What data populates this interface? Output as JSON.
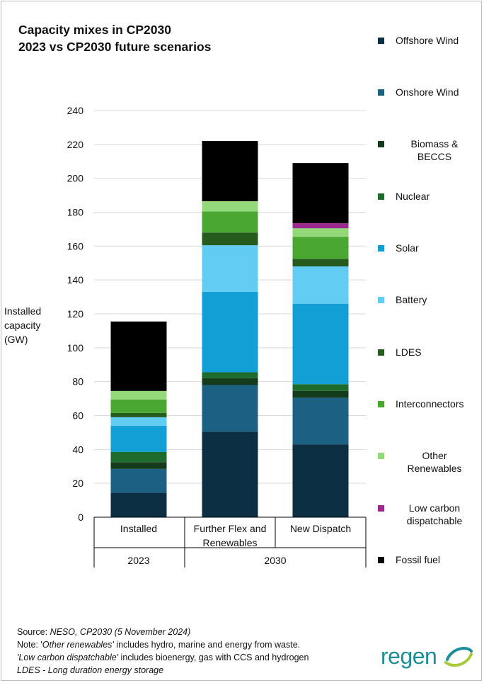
{
  "chart_data": {
    "type": "bar",
    "stacked": true,
    "title_line1": "Capacity mixes in CP2030",
    "title_line2": "2023 vs CP2030 future scenarios",
    "ylabel": "Installed capacity (GW)",
    "ylim": [
      0,
      240
    ],
    "yticks": [
      0,
      20,
      40,
      60,
      80,
      100,
      120,
      140,
      160,
      180,
      200,
      220,
      240
    ],
    "grid": true,
    "legend_position": "right",
    "categories": [
      "Installed",
      "Further Flex and Renewables",
      "New Dispatch"
    ],
    "category_lines": [
      [
        "Installed"
      ],
      [
        "Further Flex and",
        "Renewables"
      ],
      [
        "New Dispatch"
      ]
    ],
    "groups": [
      {
        "label": "2023",
        "categories": [
          "Installed"
        ]
      },
      {
        "label": "2030",
        "categories": [
          "Further Flex and Renewables",
          "New Dispatch"
        ]
      }
    ],
    "series": [
      {
        "name": "Offshore Wind",
        "color": "#0c2f44",
        "values": [
          14.5,
          50.5,
          43
        ]
      },
      {
        "name": "Onshore Wind",
        "color": "#1c6184",
        "values": [
          14,
          27.5,
          27.5
        ]
      },
      {
        "name": "Biomass & BECCS",
        "color": "#143b1c",
        "values": [
          4,
          4,
          4
        ]
      },
      {
        "name": "Nuclear",
        "color": "#1e6b2e",
        "values": [
          6,
          3.5,
          4
        ]
      },
      {
        "name": "Solar",
        "color": "#129fd6",
        "values": [
          15.5,
          47.5,
          47.5
        ]
      },
      {
        "name": "Battery",
        "color": "#63ccf2",
        "values": [
          5,
          27.5,
          22
        ]
      },
      {
        "name": "LDES",
        "color": "#255c1e",
        "values": [
          2.5,
          7.5,
          4.5
        ]
      },
      {
        "name": "Interconnectors",
        "color": "#4aa832",
        "values": [
          8,
          12.5,
          13
        ]
      },
      {
        "name": "Other Renewables",
        "color": "#93d97a",
        "values": [
          5,
          6,
          5
        ]
      },
      {
        "name": "Low carbon dispatchable",
        "color": "#9b2a8e",
        "values": [
          0,
          0,
          3
        ]
      },
      {
        "name": "Fossil fuel",
        "color": "#000000",
        "values": [
          41,
          35.5,
          35.5
        ]
      }
    ]
  },
  "legend": {
    "items": [
      {
        "lines": [
          "Offshore Wind"
        ],
        "color": "#0c2f44"
      },
      {
        "lines": [
          "Onshore Wind"
        ],
        "color": "#1c6184"
      },
      {
        "lines": [
          "Biomass &",
          "BECCS"
        ],
        "color": "#143b1c"
      },
      {
        "lines": [
          "Nuclear"
        ],
        "color": "#1e6b2e"
      },
      {
        "lines": [
          "Solar"
        ],
        "color": "#129fd6"
      },
      {
        "lines": [
          "Battery"
        ],
        "color": "#63ccf2"
      },
      {
        "lines": [
          "LDES"
        ],
        "color": "#255c1e"
      },
      {
        "lines": [
          "Interconnectors"
        ],
        "color": "#4aa832"
      },
      {
        "lines": [
          "Other",
          "Renewables"
        ],
        "color": "#93d97a"
      },
      {
        "lines": [
          "Low carbon",
          "dispatchable"
        ],
        "color": "#9b2a8e"
      },
      {
        "lines": [
          "Fossil fuel"
        ],
        "color": "#000000"
      }
    ]
  },
  "footer": {
    "source_prefix": "Source: ",
    "source_text": "NESO, CP2030 (5 November 2024)",
    "note_prefix": "Note: '",
    "note_italic": "Other renewables'",
    "note_rest": " includes hydro, marine and energy from waste.",
    "line3_italic": "'Low carbon dispatchable'",
    "line3_rest": " includes bioenergy, gas with CCS and hydrogen",
    "line4": "LDES - Long duration energy storage"
  },
  "logo": {
    "text": "regen"
  },
  "colors": {
    "gridline": "#d9d9d9",
    "axis": "#000000",
    "logo_teal": "#1a8f9a",
    "logo_green": "#a8c93a"
  }
}
